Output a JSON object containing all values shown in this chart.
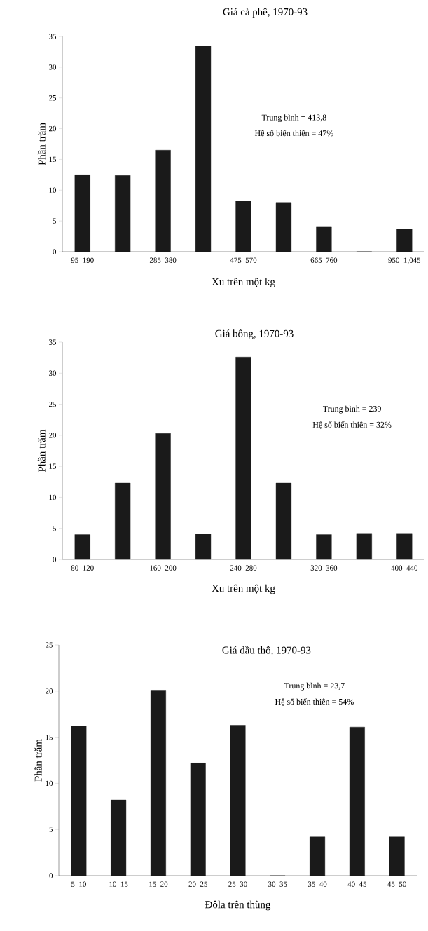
{
  "chart_data": [
    {
      "type": "bar",
      "title": "Giá cà phê, 1970-93",
      "xlabel": "Xu trên một kg",
      "ylabel": "Phần trăm",
      "categories": [
        "95–190",
        null,
        "285–380",
        null,
        "475–570",
        null,
        "665–760",
        null,
        "950–1,045"
      ],
      "values": [
        12.5,
        12.4,
        16.5,
        33.4,
        8.2,
        8.0,
        4.0,
        0,
        3.7
      ],
      "color": "#1a1a1a",
      "ylim": [
        0,
        35
      ],
      "yticks": [
        0,
        5,
        10,
        15,
        20,
        25,
        30,
        35
      ],
      "annotations": [
        "Trung bình = 413,8",
        "Hệ số biến thiên = 47%"
      ]
    },
    {
      "type": "bar",
      "title": "Giá bông, 1970-93",
      "xlabel": "Xu trên một kg",
      "ylabel": "Phần trăm",
      "categories": [
        "80–120",
        null,
        "160–200",
        null,
        "240–280",
        null,
        "320–360",
        null,
        "400–440"
      ],
      "values": [
        4.0,
        12.3,
        20.3,
        4.1,
        32.6,
        12.3,
        4.0,
        4.2,
        4.2
      ],
      "color": "#1a1a1a",
      "ylim": [
        0,
        35
      ],
      "yticks": [
        0,
        5,
        10,
        15,
        20,
        25,
        30,
        35
      ],
      "annotations": [
        "Trung bình = 239",
        "Hệ số biến thiên = 32%"
      ]
    },
    {
      "type": "bar",
      "title": "Giá dầu thô, 1970-93",
      "xlabel": "Đôla trên thùng",
      "ylabel": "Phần trăm",
      "categories": [
        "5–10",
        "10–15",
        "15–20",
        "20–25",
        "25–30",
        "30–35",
        "35–40",
        "40–45",
        "45–50"
      ],
      "values": [
        16.2,
        8.2,
        20.1,
        12.2,
        16.3,
        0,
        4.2,
        16.1,
        4.2
      ],
      "color": "#1a1a1a",
      "ylim": [
        0,
        25
      ],
      "yticks": [
        0,
        5,
        10,
        15,
        20,
        25
      ],
      "annotations": [
        "Trung bình = 23,7",
        "Hệ số biến thiên = 54%"
      ]
    }
  ]
}
